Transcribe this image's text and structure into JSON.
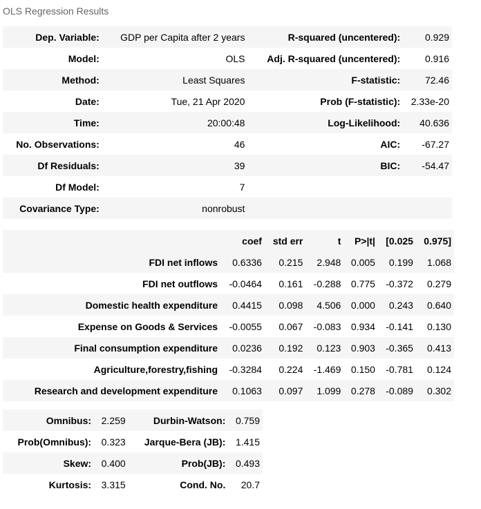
{
  "caption": "OLS Regression Results",
  "summary": [
    [
      "Dep. Variable:",
      "GDP per Capita after 2 years",
      "R-squared (uncentered):",
      "0.929"
    ],
    [
      "Model:",
      "OLS",
      "Adj. R-squared (uncentered):",
      "0.916"
    ],
    [
      "Method:",
      "Least Squares",
      "F-statistic:",
      "72.46"
    ],
    [
      "Date:",
      "Tue, 21 Apr 2020",
      "Prob (F-statistic):",
      "2.33e-20"
    ],
    [
      "Time:",
      "20:00:48",
      "Log-Likelihood:",
      "40.636"
    ],
    [
      "No. Observations:",
      "46",
      "AIC:",
      "-67.27"
    ],
    [
      "Df Residuals:",
      "39",
      "BIC:",
      "-54.47"
    ],
    [
      "Df Model:",
      "7",
      "",
      ""
    ],
    [
      "Covariance Type:",
      "nonrobust",
      "",
      ""
    ]
  ],
  "coef_headers": [
    "",
    "coef",
    "std err",
    "t",
    "P>|t|",
    "[0.025",
    "0.975]"
  ],
  "coef_rows": [
    [
      "FDI net inflows",
      "0.6336",
      "0.215",
      "2.948",
      "0.005",
      "0.199",
      "1.068"
    ],
    [
      "FDI net outflows",
      "-0.0464",
      "0.161",
      "-0.288",
      "0.775",
      "-0.372",
      "0.279"
    ],
    [
      "Domestic health expenditure",
      "0.4415",
      "0.098",
      "4.506",
      "0.000",
      "0.243",
      "0.640"
    ],
    [
      "Expense on Goods & Services",
      "-0.0055",
      "0.067",
      "-0.083",
      "0.934",
      "-0.141",
      "0.130"
    ],
    [
      "Final consumption expenditure",
      "0.0236",
      "0.192",
      "0.123",
      "0.903",
      "-0.365",
      "0.413"
    ],
    [
      "Agriculture,forestry,fishing",
      "-0.3284",
      "0.224",
      "-1.469",
      "0.150",
      "-0.781",
      "0.124"
    ],
    [
      "Research and development expenditure",
      "0.1063",
      "0.097",
      "1.099",
      "0.278",
      "-0.089",
      "0.302"
    ]
  ],
  "diagnostics": [
    [
      "Omnibus:",
      "2.259",
      "Durbin-Watson:",
      "0.759"
    ],
    [
      "Prob(Omnibus):",
      "0.323",
      "Jarque-Bera (JB):",
      "1.415"
    ],
    [
      "Skew:",
      "0.400",
      "Prob(JB):",
      "0.493"
    ],
    [
      "Kurtosis:",
      "3.315",
      "Cond. No.",
      "20.7"
    ]
  ]
}
